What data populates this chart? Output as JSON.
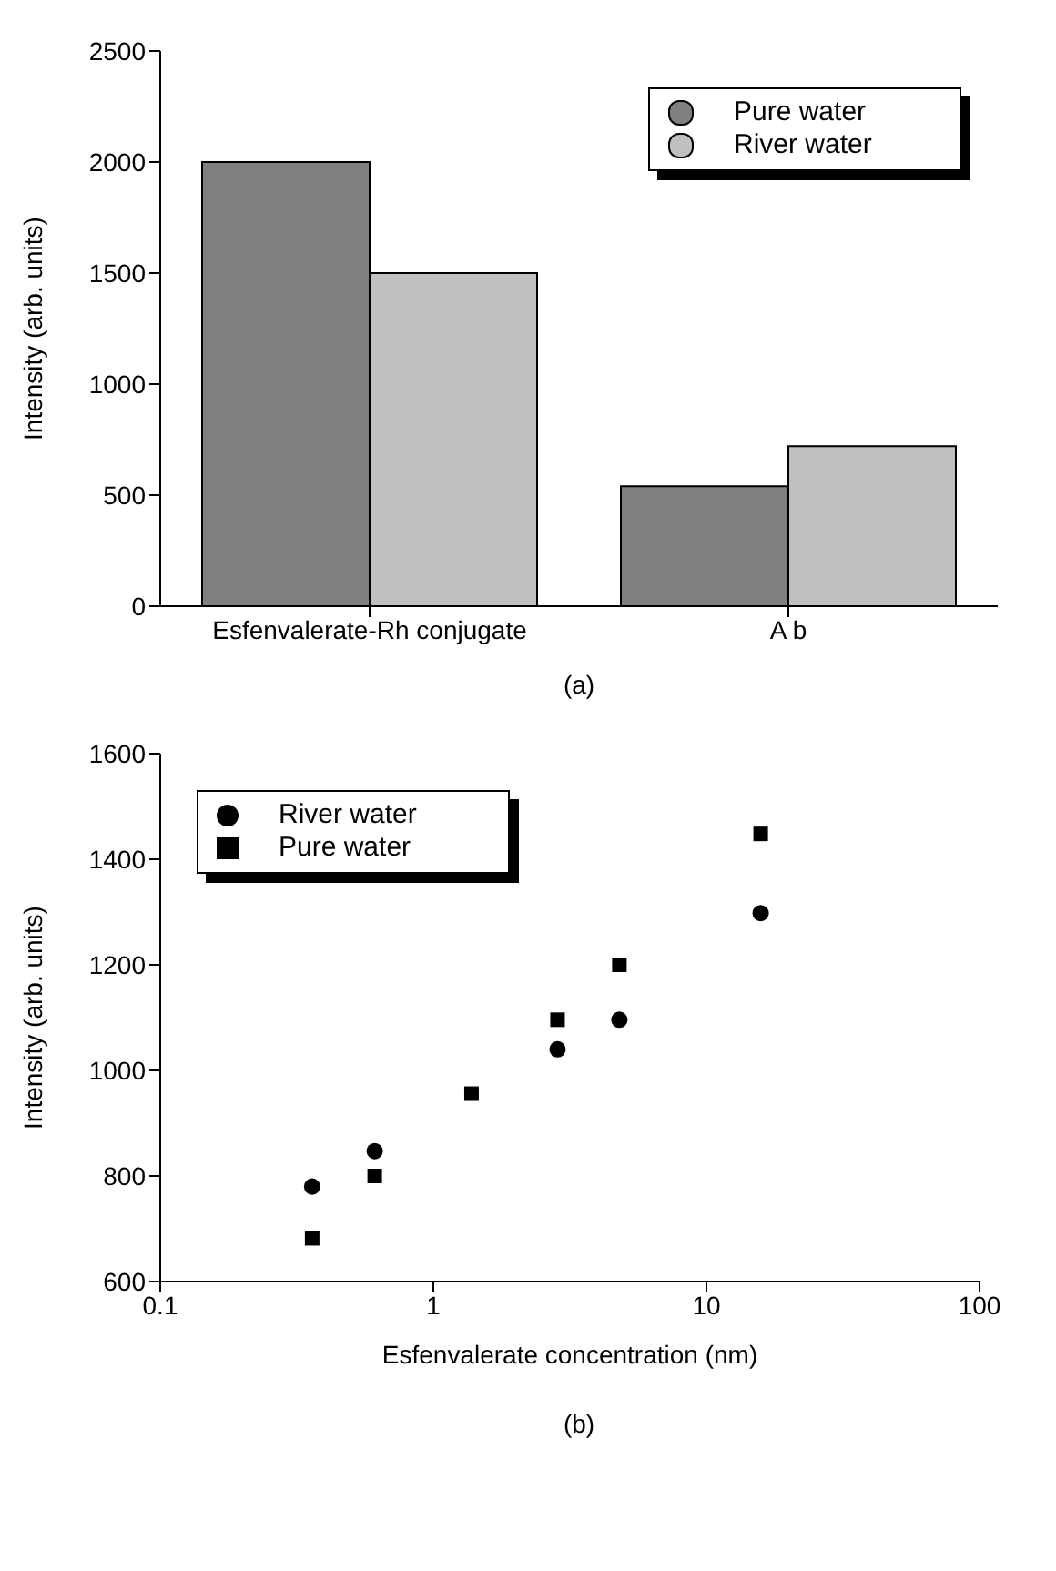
{
  "chart_data": [
    {
      "type": "bar",
      "categories": [
        "Esfenvalerate-Rh conjugate",
        "A b"
      ],
      "ylabel": "Intensity (arb. units)",
      "ylim": [
        0,
        2500
      ],
      "yticks": [
        0,
        500,
        1000,
        1500,
        2000,
        2500
      ],
      "legend": "top right",
      "annotations": [
        "(a)"
      ],
      "series": [
        {
          "name": "Pure water",
          "color": "#808080",
          "values": [
            2000,
            540
          ]
        },
        {
          "name": "River water",
          "color": "#c0c0c0",
          "values": [
            1500,
            720
          ]
        }
      ]
    },
    {
      "type": "scatter",
      "xlabel": "Esfenvalerate concentration (nm)",
      "ylabel": "Intensity (arb. units)",
      "log": "x",
      "xlim": [
        0.1,
        100
      ],
      "xticks": [
        0.1,
        1,
        10,
        100
      ],
      "ylim": [
        600,
        1600
      ],
      "yticks": [
        600,
        800,
        1000,
        1200,
        1400,
        1600
      ],
      "legend": "top left",
      "annotations": [
        "(b)"
      ],
      "series": [
        {
          "name": "River water",
          "color": "#000000",
          "marker": "circle",
          "x": [
            0.36,
            0.61,
            2.85,
            4.8,
            15.8
          ],
          "values": [
            780,
            847,
            1040,
            1096,
            1298
          ]
        },
        {
          "name": "Pure water",
          "color": "#000000",
          "marker": "square",
          "x": [
            0.36,
            0.61,
            1.38,
            2.85,
            4.8,
            15.8
          ],
          "values": [
            682,
            800,
            956,
            1096,
            1200,
            1448
          ]
        }
      ]
    }
  ]
}
